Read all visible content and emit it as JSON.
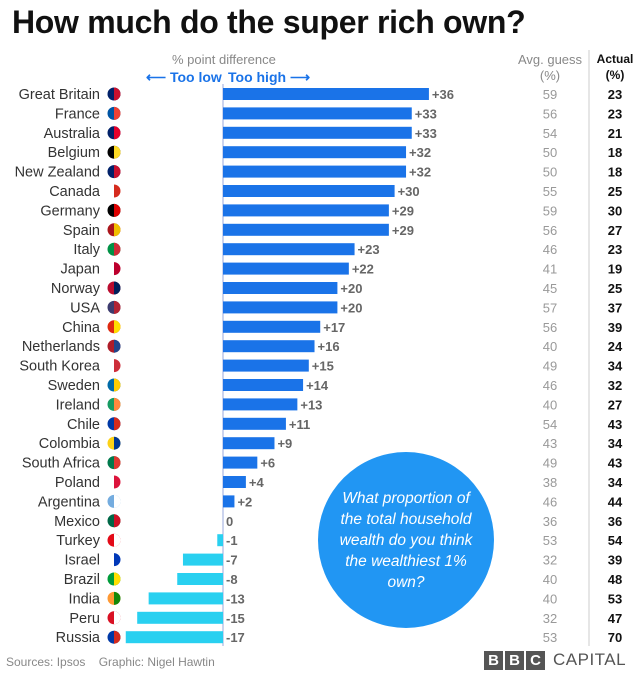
{
  "title": "How much do the super rich own?",
  "header": {
    "diff": "% point difference",
    "too_low": "⟵ Too low",
    "too_high": "Too high ⟶",
    "guess_line1": "Avg. guess",
    "guess_line2": "(%)",
    "actual_line1": "Actual",
    "actual_line2": "(%)"
  },
  "question": "What proportion of the total household wealth do you think the wealthiest 1% own?",
  "footer": {
    "sources": "Sources: Ipsos",
    "graphic": "Graphic: Nigel Hawtin"
  },
  "logo": {
    "letters": [
      "B",
      "B",
      "C"
    ],
    "word": "CAPITAL"
  },
  "colors": {
    "positive": "#1a73e8",
    "negative": "#29d0f0",
    "bubble": "#2196f3"
  },
  "chart_data": {
    "type": "bar",
    "orientation": "horizontal",
    "title": "How much do the super rich own?",
    "xlabel": "% point difference",
    "xlim": [
      -18,
      37
    ],
    "categories": [
      "Great Britain",
      "France",
      "Australia",
      "Belgium",
      "New Zealand",
      "Canada",
      "Germany",
      "Spain",
      "Italy",
      "Japan",
      "Norway",
      "USA",
      "China",
      "Netherlands",
      "South Korea",
      "Sweden",
      "Ireland",
      "Chile",
      "Colombia",
      "South Africa",
      "Poland",
      "Argentina",
      "Mexico",
      "Turkey",
      "Israel",
      "Brazil",
      "India",
      "Peru",
      "Russia"
    ],
    "values": [
      36,
      33,
      33,
      32,
      32,
      30,
      29,
      29,
      23,
      22,
      20,
      20,
      17,
      16,
      15,
      14,
      13,
      11,
      9,
      6,
      4,
      2,
      0,
      -1,
      -7,
      -8,
      -13,
      -15,
      -17
    ],
    "labels": [
      "+36",
      "+33",
      "+33",
      "+32",
      "+32",
      "+30",
      "+29",
      "+29",
      "+23",
      "+22",
      "+20",
      "+20",
      "+17",
      "+16",
      "+15",
      "+14",
      "+13",
      "+11",
      "+9",
      "+6",
      "+4",
      "+2",
      "0",
      "-1",
      "-7",
      "-8",
      "-13",
      "-15",
      "-17"
    ],
    "avg_guess": [
      59,
      56,
      54,
      50,
      50,
      55,
      59,
      56,
      46,
      41,
      45,
      57,
      56,
      40,
      49,
      46,
      40,
      54,
      43,
      49,
      38,
      46,
      36,
      53,
      32,
      40,
      40,
      32,
      53
    ],
    "actual": [
      23,
      23,
      21,
      18,
      18,
      25,
      30,
      27,
      23,
      19,
      25,
      37,
      39,
      24,
      34,
      32,
      27,
      43,
      34,
      43,
      34,
      44,
      36,
      54,
      39,
      48,
      53,
      47,
      70
    ],
    "flags": [
      "gb-flag-icon",
      "fr-flag-icon",
      "au-flag-icon",
      "be-flag-icon",
      "nz-flag-icon",
      "ca-flag-icon",
      "de-flag-icon",
      "es-flag-icon",
      "it-flag-icon",
      "jp-flag-icon",
      "no-flag-icon",
      "us-flag-icon",
      "cn-flag-icon",
      "nl-flag-icon",
      "kr-flag-icon",
      "se-flag-icon",
      "ie-flag-icon",
      "cl-flag-icon",
      "co-flag-icon",
      "za-flag-icon",
      "pl-flag-icon",
      "ar-flag-icon",
      "mx-flag-icon",
      "tr-flag-icon",
      "il-flag-icon",
      "br-flag-icon",
      "in-flag-icon",
      "pe-flag-icon",
      "ru-flag-icon"
    ]
  }
}
